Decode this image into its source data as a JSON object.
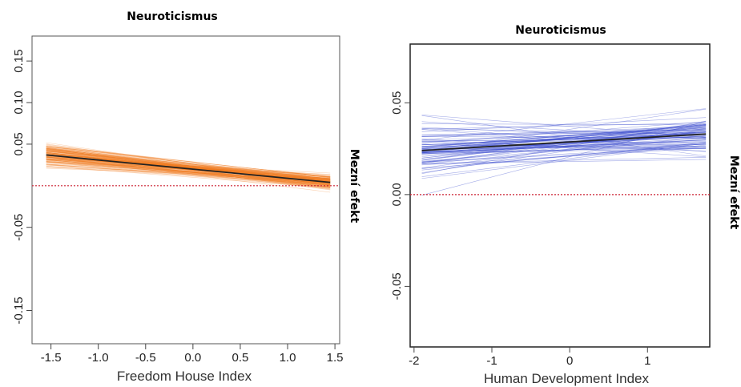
{
  "chart_data": [
    {
      "type": "line",
      "title": "Neuroticismus",
      "xlabel": "Freedom House Index",
      "ylabel": "Mezní efekt",
      "x_ticks": [
        "-1.5",
        "-1.0",
        "-0.5",
        "0.0",
        "0.5",
        "1.0",
        "1.5"
      ],
      "y_ticks": [
        "-0.15",
        "-0.05",
        "0.05",
        "0.10",
        "0.15"
      ],
      "xlim": [
        -1.7,
        1.55
      ],
      "ylim": [
        -0.19,
        0.18
      ],
      "reference_line": 0,
      "series": [
        {
          "x": [
            -1.55,
            1.45
          ],
          "values": [
            0.037,
            0.004
          ]
        }
      ],
      "band_color": "#f07a20",
      "line_color": "#222222",
      "reference_color": "#cc2233"
    },
    {
      "type": "line",
      "title": "Neuroticismus",
      "xlabel": "Human Development Index",
      "ylabel": "Mezní efekt",
      "x_ticks": [
        "-2",
        "-1",
        "0",
        "1"
      ],
      "y_ticks": [
        "-0.05",
        "0.00",
        "0.05"
      ],
      "xlim": [
        -2.05,
        1.8
      ],
      "ylim": [
        -0.083,
        0.082
      ],
      "reference_line": 0,
      "series": [
        {
          "x": [
            -1.9,
            1.75
          ],
          "values": [
            0.024,
            0.033
          ]
        }
      ],
      "band_color": "#3344cc",
      "line_color": "#222222",
      "reference_color": "#cc2233"
    }
  ]
}
